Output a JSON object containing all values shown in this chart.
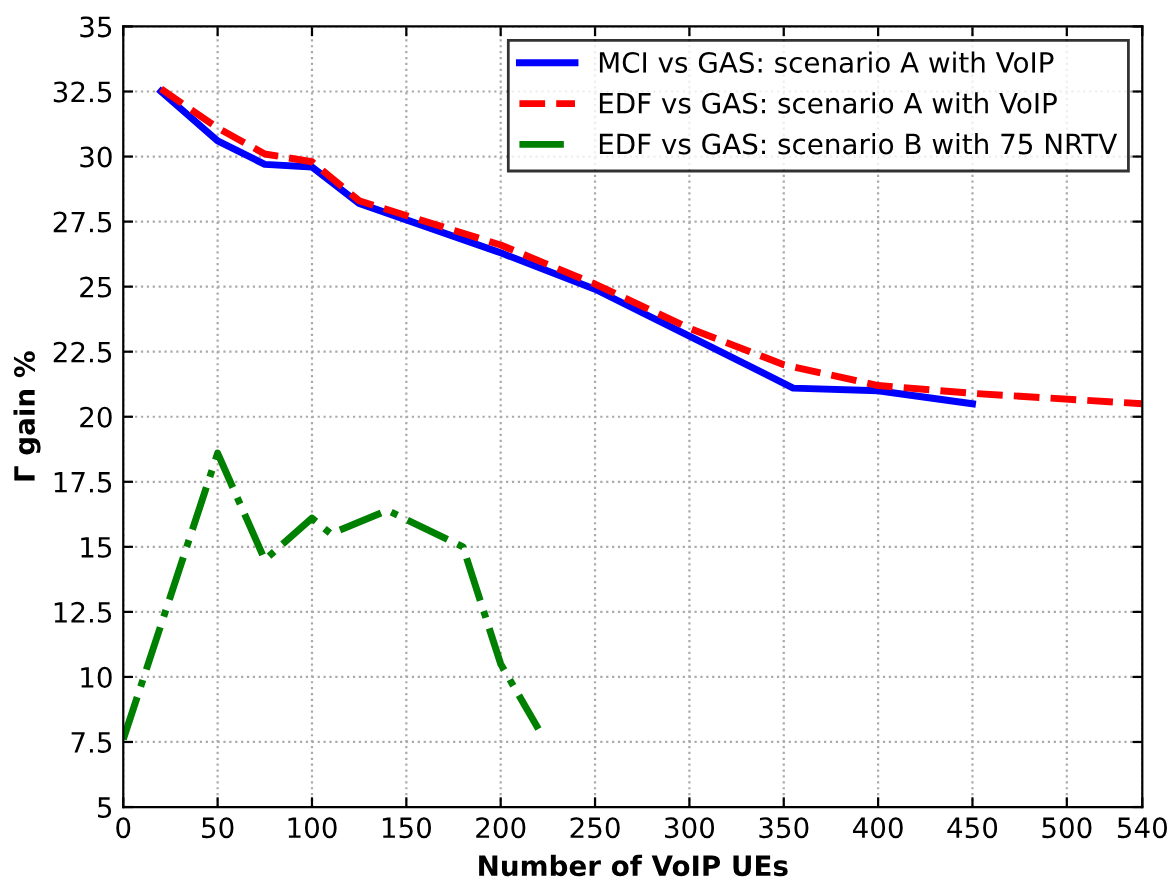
{
  "chart_data": {
    "type": "line",
    "xlabel": "Number of VoIP UEs",
    "ylabel": "Γ gain %",
    "xlim": [
      0,
      540
    ],
    "ylim": [
      5,
      35
    ],
    "xticks": [
      0,
      50,
      100,
      150,
      200,
      250,
      300,
      350,
      400,
      450,
      500,
      540
    ],
    "yticks": [
      5,
      7.5,
      10,
      12.5,
      15,
      17.5,
      20,
      22.5,
      25,
      27.5,
      30,
      32.5,
      35
    ],
    "grid": true,
    "legend": "top right",
    "marker": "none",
    "series": [
      {
        "name": "MCI vs GAS: scenario A with VoIP",
        "color": "#0000ff",
        "line_style": "solid",
        "x": [
          20,
          50,
          75,
          100,
          125,
          200,
          250,
          300,
          355,
          400,
          450
        ],
        "values": [
          32.5,
          30.6,
          29.7,
          29.6,
          28.2,
          26.3,
          24.9,
          23.1,
          21.1,
          21.0,
          20.5
        ]
      },
      {
        "name": "EDF vs GAS: scenario A with VoIP",
        "color": "#ff0000",
        "line_style": "dashed",
        "x": [
          20,
          50,
          75,
          100,
          125,
          200,
          250,
          300,
          350,
          400,
          450,
          540
        ],
        "values": [
          32.6,
          31.1,
          30.1,
          29.8,
          28.3,
          26.6,
          25.1,
          23.4,
          22.0,
          21.2,
          20.9,
          20.5
        ]
      },
      {
        "name": "EDF vs GAS: scenario B with 75 NRTV",
        "color": "#008000",
        "line_style": "dashdot",
        "x": [
          0,
          50,
          75,
          100,
          110,
          140,
          180,
          200,
          220
        ],
        "values": [
          7.6,
          18.6,
          14.5,
          16.1,
          15.5,
          16.4,
          15.0,
          10.5,
          8.0
        ]
      }
    ]
  }
}
